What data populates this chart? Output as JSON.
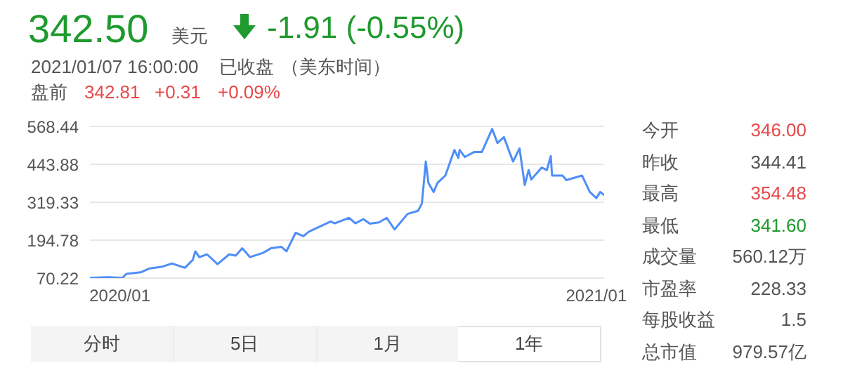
{
  "chart_data": {
    "type": "line",
    "x": [
      "2019-12-09",
      "2019-12-23",
      "2020-01-03",
      "2020-01-06",
      "2020-01-17",
      "2020-01-24",
      "2020-02-02",
      "2020-02-10",
      "2020-02-20",
      "2020-02-26",
      "2020-02-28",
      "2020-03-02",
      "2020-03-08",
      "2020-03-16",
      "2020-03-25",
      "2020-03-30",
      "2020-04-04",
      "2020-04-10",
      "2020-04-20",
      "2020-04-26",
      "2020-05-04",
      "2020-05-08",
      "2020-05-15",
      "2020-05-21",
      "2020-05-25",
      "2020-05-29",
      "2020-06-11",
      "2020-06-14",
      "2020-06-25",
      "2020-06-30",
      "2020-07-06",
      "2020-07-11",
      "2020-07-18",
      "2020-07-24",
      "2020-07-30",
      "2020-08-09",
      "2020-08-17",
      "2020-08-20",
      "2020-08-23",
      "2020-08-25",
      "2020-08-29",
      "2020-09-01",
      "2020-09-07",
      "2020-09-14",
      "2020-09-17",
      "2020-09-18",
      "2020-09-22",
      "2020-09-29",
      "2020-10-05",
      "2020-10-13",
      "2020-10-17",
      "2020-10-22",
      "2020-10-29",
      "2020-11-03",
      "2020-11-07",
      "2020-11-10",
      "2020-11-12",
      "2020-11-20",
      "2020-11-24",
      "2020-11-27",
      "2020-11-28",
      "2020-12-06",
      "2020-12-09",
      "2020-12-21",
      "2020-12-27",
      "2021-01-01",
      "2021-01-04",
      "2021-01-07"
    ],
    "series": [
      {
        "color": "#4f8ef7",
        "values": [
          71,
          73,
          71,
          84,
          89,
          102,
          107,
          118,
          104,
          130,
          158,
          139,
          148,
          116,
          148,
          144,
          168,
          139,
          153,
          168,
          173,
          158,
          219,
          208,
          222,
          230,
          256,
          250,
          268,
          250,
          264,
          249,
          253,
          268,
          230,
          281,
          291,
          315,
          453,
          383,
          353,
          383,
          407,
          491,
          465,
          491,
          468,
          484,
          484,
          560,
          514,
          533,
          453,
          496,
          376,
          425,
          394,
          433,
          425,
          471,
          407,
          407,
          392,
          407,
          353,
          333,
          353,
          343
        ]
      }
    ],
    "xlim": [
      "2019-12-09",
      "2021-01-07"
    ],
    "xticks": [
      {
        "value": "2020-01-01",
        "label": "2020/01"
      },
      {
        "value": "2021-01-01",
        "label": "2021/01"
      }
    ],
    "ylim": [
      70.22,
      568.44
    ],
    "yticks": [
      70.22,
      194.78,
      319.33,
      443.88,
      568.44
    ],
    "grid": "y",
    "legend": false,
    "marker": "none",
    "line_style": "solid",
    "annotations": [
      "342.50",
      "美元",
      "-1.91 (-0.55%)",
      "2021/01/07 16:00:00",
      "已收盘",
      "（美东时间）",
      "盘前",
      "342.81",
      "+0.31",
      "+0.09%",
      "今开",
      "346.00",
      "昨收",
      "344.41",
      "最高",
      "354.48",
      "最低",
      "341.60",
      "成交量",
      "560.12万",
      "市盈率",
      "228.33",
      "每股收益",
      "1.5",
      "总市值",
      "979.57亿",
      "分时",
      "5日",
      "1月",
      "1年"
    ]
  }
}
